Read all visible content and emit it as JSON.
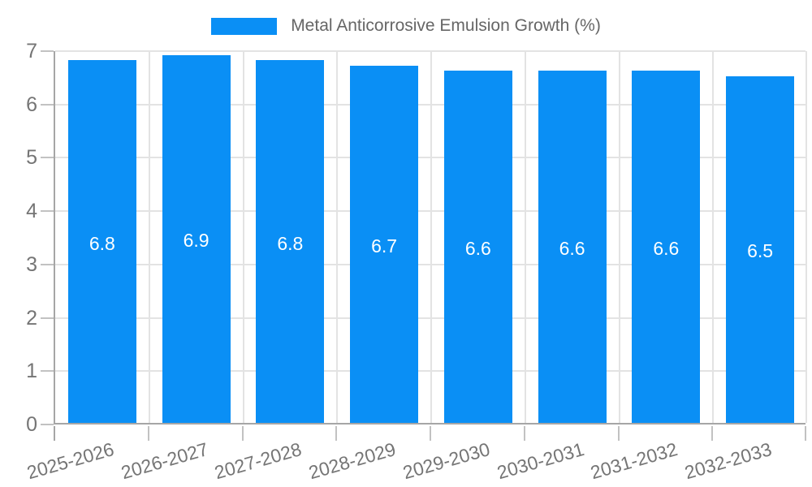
{
  "legend": {
    "label": "Metal Anticorrosive Emulsion Growth (%)"
  },
  "colors": {
    "bar": "#0a8ff5",
    "grid": "#e3e3e3",
    "axis": "#a6a6a6",
    "tick_mark": "#c2c2c2",
    "tick_label": "#757575",
    "legend_text": "#666666",
    "value_label": "#ffffff",
    "background": "#ffffff"
  },
  "chart_data": {
    "type": "bar",
    "title": "",
    "series_name": "Metal Anticorrosive Emulsion Growth (%)",
    "categories": [
      "2025-2026",
      "2026-2027",
      "2027-2028",
      "2028-2029",
      "2029-2030",
      "2030-2031",
      "2031-2032",
      "2032-2033"
    ],
    "values": [
      6.8,
      6.9,
      6.8,
      6.7,
      6.6,
      6.6,
      6.6,
      6.5
    ],
    "value_format_decimals": 1,
    "xlabel": "",
    "ylabel": "",
    "ylim": [
      0,
      7
    ],
    "yticks": [
      0,
      1,
      2,
      3,
      4,
      5,
      6,
      7
    ],
    "grid": true,
    "legend_position": "top-center",
    "value_label_position": "inside-center",
    "x_label_rotation_deg": -16
  }
}
